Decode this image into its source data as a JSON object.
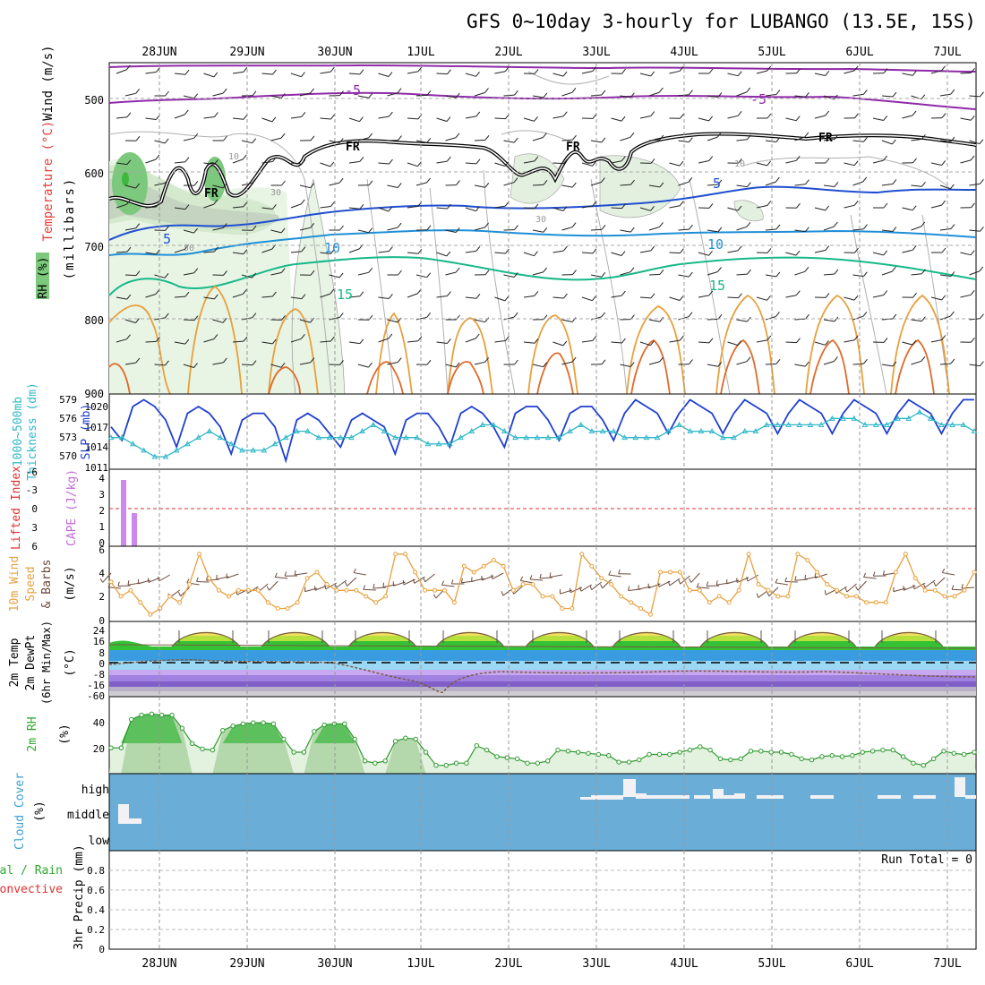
{
  "title": "GFS 0~10day 3-hourly for LUBANGO (13.5E, 15S)",
  "dates": [
    "28JUN",
    "29JUN",
    "30JUN",
    "1JUL",
    "2JUL",
    "3JUL",
    "4JUL",
    "5JUL",
    "6JUL",
    "7JUL"
  ],
  "panels": {
    "upper": {
      "ylabel_wind": "Wind (m/s)",
      "ylabel_temp": "Temperature (°C)",
      "ylabel_rh": "RH (%)",
      "ylabel_mb": "(millibars)",
      "yticks": [
        "500",
        "600",
        "700",
        "800",
        "900"
      ],
      "fr_label": "FR",
      "iso_labels": [
        "-5",
        "-5",
        "5",
        "5",
        "10",
        "10",
        "15",
        "15",
        "10",
        "30",
        "30",
        "50",
        "10"
      ]
    },
    "thick": {
      "ylabel1": "1000~500mb",
      "ylabel2": "Thickness (dm)",
      "ylabel3": "SLP (mb)",
      "yticks_left": [
        "579",
        "576",
        "573",
        "570"
      ],
      "yticks_right": [
        "1020",
        "1017",
        "1014",
        "1011"
      ]
    },
    "cape": {
      "ylabel1": "Lifted Index",
      "ylabel2": "CAPE (J/kg)",
      "yticks_left": [
        "-6",
        "-3",
        "0",
        "3",
        "6"
      ],
      "yticks_right": [
        "4",
        "3",
        "2",
        "1",
        "0"
      ]
    },
    "wind10": {
      "ylabel1": "10m Wind",
      "ylabel2": "Speed",
      "ylabel3": "& Barbs",
      "ylabel4": "(m/s)",
      "yticks": [
        "6",
        "4",
        "2",
        "0"
      ]
    },
    "temp2m": {
      "ylabel1": "2m Temp",
      "ylabel2": "2m DewPt",
      "ylabel3": "(6hr Min/Max)",
      "ylabel4": "(°C)",
      "yticks": [
        "24",
        "16",
        "8",
        "0",
        "-8",
        "-16",
        "-60"
      ]
    },
    "rh2m": {
      "ylabel1": "2m RH",
      "ylabel2": "(%)",
      "yticks": [
        "40",
        "20"
      ]
    },
    "cloud": {
      "ylabel1": "Cloud Cover",
      "ylabel2": "(%)",
      "levels": [
        "high",
        "middle",
        "low"
      ]
    },
    "precip": {
      "ylabel1": "Total / Rain",
      "ylabel2": "Convective",
      "ylabel3": "3hr Precip (mm)",
      "run_total": "Run Total = 0",
      "yticks": [
        "0.8",
        "0.6",
        "0.4",
        "0.2",
        "0"
      ]
    }
  },
  "chart_data": [
    {
      "type": "line",
      "title": "1000~500mb Thickness (dm) / SLP (mb)",
      "series": [
        {
          "name": "SLP (mb)",
          "values": [
            1017,
            1015,
            1020,
            1021,
            1020,
            1018,
            1014,
            1019,
            1020,
            1019,
            1017,
            1013,
            1018,
            1019,
            1019,
            1017,
            1012,
            1018,
            1019,
            1018,
            1016,
            1014,
            1018,
            1019,
            1018,
            1017,
            1013,
            1018,
            1019,
            1019,
            1017,
            1014,
            1019,
            1020,
            1019,
            1017,
            1014,
            1019,
            1020,
            1020,
            1018,
            1015,
            1019,
            1020,
            1020,
            1018,
            1015,
            1019,
            1021,
            1020,
            1019,
            1016,
            1019,
            1021,
            1020,
            1019,
            1016,
            1019,
            1021,
            1020,
            1019,
            1016,
            1019,
            1021,
            1020,
            1019,
            1016,
            1019,
            1021,
            1020,
            1019,
            1016,
            1019,
            1021,
            1020,
            1019,
            1016,
            1019,
            1021,
            1021
          ]
        },
        {
          "name": "Thickness (dm)",
          "values": [
            573,
            573,
            572,
            571,
            570,
            570,
            571,
            572,
            573,
            574,
            573,
            572,
            571,
            571,
            571,
            572,
            573,
            574,
            574,
            573,
            573,
            573,
            573,
            574,
            575,
            574,
            573,
            573,
            573,
            572,
            572,
            572,
            573,
            574,
            575,
            575,
            574,
            573,
            573,
            573,
            573,
            573,
            574,
            575,
            574,
            574,
            574,
            573,
            573,
            573,
            573,
            574,
            575,
            574,
            574,
            574,
            573,
            573,
            574,
            574,
            575,
            575,
            575,
            575,
            575,
            575,
            576,
            576,
            576,
            575,
            575,
            575,
            576,
            576,
            577,
            576,
            575,
            575,
            575,
            574
          ]
        }
      ]
    },
    {
      "type": "bar",
      "title": "CAPE (J/kg)",
      "x": [
        0.5,
        1.0
      ],
      "values": [
        4,
        2
      ]
    },
    {
      "type": "line",
      "title": "10m Wind Speed (m/s)",
      "values": [
        3.2,
        2,
        2.5,
        1.5,
        0.5,
        1,
        2,
        1.5,
        3,
        5.5,
        3.5,
        2.5,
        2,
        2.5,
        2.5,
        2.5,
        1.5,
        1,
        1,
        1.5,
        3.5,
        4,
        3,
        2.5,
        2.5,
        2.5,
        2,
        1.5,
        2,
        5.5,
        5.5,
        4,
        2.5,
        2.5,
        2.5,
        1.5,
        4.5,
        4,
        4.5,
        5,
        4.5,
        2.5,
        3,
        3,
        2,
        2,
        1,
        1,
        5.5,
        4.5,
        3.5,
        3,
        2,
        1.5,
        1,
        0.5,
        4,
        4,
        4,
        2.5,
        2.5,
        1.5,
        2,
        1.5,
        2.5,
        5.5,
        3,
        2.5,
        2,
        2,
        5.5,
        5,
        4,
        3,
        2.5,
        2,
        2,
        1.5,
        1.5,
        1.5,
        4,
        5.5,
        3.5,
        2.5,
        2.5,
        2,
        2,
        2.5,
        4
      ]
    },
    {
      "type": "area",
      "title": "2m RH (%)",
      "values": [
        22,
        22,
        48,
        52,
        53,
        52,
        52,
        40,
        26,
        21,
        20,
        38,
        42,
        44,
        45,
        45,
        44,
        30,
        18,
        18,
        37,
        43,
        44,
        44,
        30,
        10,
        8,
        10,
        28,
        31,
        30,
        18,
        6,
        6,
        8,
        8,
        24,
        20,
        14,
        13,
        12,
        8,
        8,
        10,
        20,
        19,
        18,
        17,
        16,
        15,
        9,
        9,
        11,
        16,
        16,
        16,
        18,
        20,
        23,
        20,
        12,
        11,
        12,
        19,
        19,
        18,
        18,
        16,
        12,
        11,
        14,
        15,
        14,
        15,
        18,
        19,
        20,
        20,
        14,
        8,
        6,
        12,
        19,
        17,
        16,
        18
      ]
    },
    {
      "type": "bar",
      "title": "Cloud Cover (%)",
      "categories": [
        "high",
        "middle",
        "low"
      ],
      "values": [
        0,
        0,
        0
      ]
    },
    {
      "type": "bar",
      "title": "3hr Precip (mm)",
      "ylim": [
        0,
        1
      ],
      "values": [
        0
      ],
      "run_total": 0
    }
  ]
}
